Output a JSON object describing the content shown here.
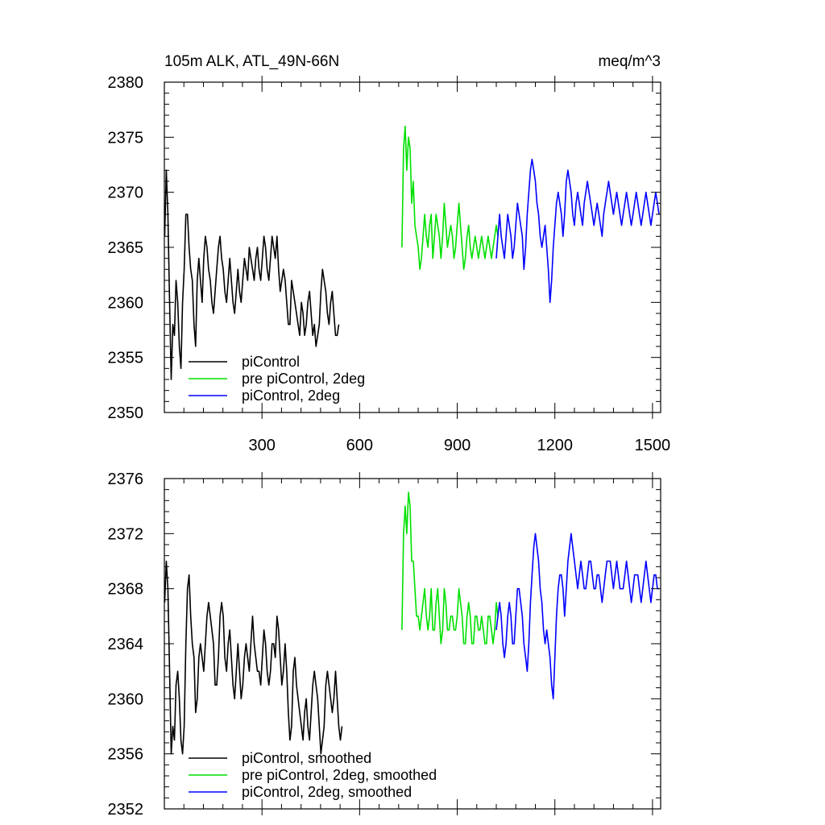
{
  "chart_data": [
    {
      "type": "line",
      "title": "105m ALK, ATL_49N-66N",
      "units": "meq/m^3",
      "xlim": [
        0,
        1525
      ],
      "ylim": [
        2350,
        2380
      ],
      "xticks": [
        300,
        600,
        900,
        1200,
        1500
      ],
      "yticks": [
        2350,
        2355,
        2360,
        2365,
        2370,
        2375,
        2380
      ],
      "show_x_tick_labels": true,
      "legend_position": "bottom-left",
      "series": [
        {
          "name": "piControl",
          "color": "#000000",
          "x_start": 1,
          "x_step": 5,
          "values": [
            2366,
            2372,
            2368,
            2360,
            2353,
            2358,
            2357,
            2362,
            2360,
            2356,
            2354,
            2360,
            2363,
            2368,
            2368,
            2365,
            2363,
            2362,
            2358,
            2356,
            2362,
            2364,
            2362,
            2360,
            2364,
            2366,
            2365,
            2363,
            2362,
            2360,
            2359,
            2361,
            2363,
            2365,
            2366,
            2364,
            2363,
            2361,
            2360,
            2362,
            2364,
            2362,
            2360,
            2359,
            2361,
            2363,
            2361,
            2360,
            2362,
            2364,
            2363,
            2362,
            2365,
            2364,
            2363,
            2362,
            2364,
            2365,
            2363,
            2362,
            2364,
            2366,
            2365,
            2363,
            2362,
            2364,
            2366,
            2365,
            2364,
            2366,
            2363,
            2361,
            2362,
            2363,
            2362,
            2360,
            2358,
            2358,
            2362,
            2361,
            2360,
            2359,
            2358,
            2357,
            2360,
            2359,
            2357,
            2358,
            2360,
            2361,
            2359,
            2357,
            2358,
            2356,
            2357,
            2358,
            2361,
            2363,
            2362,
            2361,
            2359,
            2358,
            2360,
            2361,
            2359,
            2357,
            2357,
            2358
          ],
          "visible_range": [
            1,
            1205
          ]
        },
        {
          "name": "pre piControl, 2deg",
          "color": "#00e000",
          "x_start": 730,
          "x_step": 5,
          "values": [
            2365,
            2374,
            2376,
            2372,
            2375,
            2374,
            2369,
            2371,
            2367,
            2366,
            2365,
            2363,
            2364,
            2366,
            2368,
            2366,
            2365,
            2367,
            2368,
            2364,
            2366,
            2368,
            2367,
            2366,
            2364,
            2366,
            2369,
            2367,
            2365,
            2366,
            2367,
            2366,
            2364,
            2365,
            2367,
            2369,
            2367,
            2365,
            2363,
            2364,
            2366,
            2367,
            2365,
            2364,
            2365,
            2366,
            2365,
            2364,
            2365,
            2366,
            2365,
            2364,
            2365,
            2366,
            2365,
            2364,
            2365,
            2366,
            2367,
            2366
          ],
          "visible_range": [
            730,
            1020
          ]
        },
        {
          "name": "piControl, 2deg",
          "color": "#0000ff",
          "x_start": 1020,
          "x_step": 5,
          "values": [
            2364,
            2366,
            2368,
            2366,
            2365,
            2364,
            2366,
            2368,
            2367,
            2366,
            2364,
            2365,
            2367,
            2369,
            2368,
            2367,
            2366,
            2363,
            2365,
            2368,
            2370,
            2372,
            2373,
            2372,
            2371,
            2369,
            2368,
            2366,
            2365,
            2366,
            2367,
            2365,
            2363,
            2360,
            2362,
            2365,
            2367,
            2369,
            2370,
            2369,
            2368,
            2366,
            2368,
            2371,
            2372,
            2371,
            2370,
            2368,
            2367,
            2369,
            2370,
            2369,
            2368,
            2367,
            2369,
            2370,
            2371,
            2370,
            2369,
            2368,
            2367,
            2368,
            2369,
            2368,
            2367,
            2366,
            2368,
            2369,
            2370,
            2371,
            2370,
            2369,
            2368,
            2369,
            2370,
            2369,
            2368,
            2367,
            2368,
            2369,
            2370,
            2369,
            2368,
            2367,
            2368,
            2369,
            2370,
            2369,
            2368,
            2367,
            2368,
            2369,
            2370,
            2369,
            2368,
            2367,
            2368,
            2369,
            2370,
            2369,
            2368
          ],
          "visible_range": [
            1020,
            1520
          ]
        }
      ]
    },
    {
      "type": "line",
      "title": "",
      "units": "",
      "xlim": [
        0,
        1525
      ],
      "ylim": [
        2352,
        2376
      ],
      "xticks": [
        300,
        600,
        900,
        1200,
        1500
      ],
      "yticks": [
        2352,
        2356,
        2360,
        2364,
        2368,
        2372,
        2376
      ],
      "show_x_tick_labels": false,
      "legend_position": "bottom-left",
      "series": [
        {
          "name": "piControl, smoothed",
          "color": "#000000",
          "x_start": 1,
          "x_step": 5,
          "values": [
            2367,
            2370,
            2368,
            2362,
            2356,
            2358,
            2357,
            2361,
            2362,
            2360,
            2357,
            2356,
            2358,
            2364,
            2368,
            2369,
            2366,
            2364,
            2363,
            2359,
            2360,
            2363,
            2364,
            2363,
            2362,
            2364,
            2366,
            2367,
            2366,
            2365,
            2364,
            2361,
            2361,
            2363,
            2366,
            2367,
            2366,
            2363,
            2362,
            2364,
            2365,
            2363,
            2361,
            2360,
            2362,
            2364,
            2362,
            2360,
            2361,
            2363,
            2364,
            2363,
            2362,
            2364,
            2366,
            2364,
            2363,
            2362,
            2362,
            2361,
            2363,
            2365,
            2364,
            2362,
            2361,
            2362,
            2364,
            2364,
            2363,
            2366,
            2365,
            2363,
            2361,
            2362,
            2364,
            2362,
            2359,
            2357,
            2358,
            2362,
            2363,
            2361,
            2360,
            2359,
            2358,
            2357,
            2359,
            2360,
            2358,
            2357,
            2359,
            2361,
            2362,
            2361,
            2360,
            2358,
            2356,
            2357,
            2358,
            2361,
            2362,
            2361,
            2360,
            2359,
            2360,
            2362,
            2360,
            2358,
            2357,
            2358
          ],
          "visible_range": [
            1,
            1205
          ]
        },
        {
          "name": "pre piControl, 2deg, smoothed",
          "color": "#00e000",
          "x_start": 730,
          "x_step": 5,
          "values": [
            2365,
            2372,
            2374,
            2372,
            2375,
            2374,
            2370,
            2370,
            2368,
            2366,
            2366,
            2365,
            2366,
            2367,
            2368,
            2366,
            2365,
            2366,
            2368,
            2365,
            2365,
            2367,
            2368,
            2366,
            2364,
            2365,
            2368,
            2367,
            2365,
            2365,
            2366,
            2366,
            2365,
            2365,
            2366,
            2368,
            2367,
            2366,
            2364,
            2364,
            2366,
            2367,
            2366,
            2364,
            2364,
            2366,
            2366,
            2365,
            2365,
            2366,
            2365,
            2364,
            2364,
            2366,
            2366,
            2365,
            2364,
            2365,
            2367,
            2366
          ],
          "visible_range": [
            730,
            1020
          ]
        },
        {
          "name": "piControl, 2deg, smoothed",
          "color": "#0000ff",
          "x_start": 1020,
          "x_step": 5,
          "values": [
            2365,
            2366,
            2367,
            2366,
            2364,
            2363,
            2364,
            2366,
            2367,
            2366,
            2364,
            2364,
            2366,
            2368,
            2368,
            2367,
            2366,
            2364,
            2363,
            2362,
            2364,
            2367,
            2369,
            2371,
            2372,
            2371,
            2370,
            2368,
            2367,
            2365,
            2364,
            2365,
            2364,
            2363,
            2361,
            2360,
            2363,
            2366,
            2368,
            2369,
            2369,
            2368,
            2366,
            2368,
            2370,
            2371,
            2372,
            2371,
            2370,
            2369,
            2368,
            2369,
            2370,
            2369,
            2368,
            2368,
            2369,
            2370,
            2370,
            2369,
            2368,
            2368,
            2369,
            2369,
            2368,
            2367,
            2368,
            2369,
            2370,
            2370,
            2370,
            2369,
            2368,
            2369,
            2370,
            2369,
            2368,
            2368,
            2368,
            2369,
            2370,
            2369,
            2368,
            2367,
            2368,
            2369,
            2369,
            2369,
            2368,
            2367,
            2368,
            2369,
            2370,
            2369,
            2368,
            2367,
            2368,
            2369,
            2369,
            2368,
            2368
          ],
          "visible_range": [
            1020,
            1520
          ]
        }
      ]
    }
  ]
}
